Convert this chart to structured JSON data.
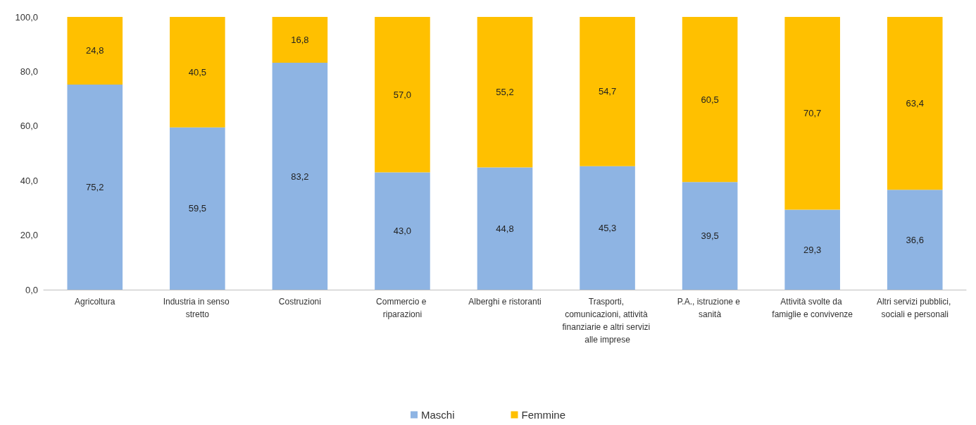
{
  "chart_data": {
    "type": "bar",
    "stacked": true,
    "categories": [
      "Agricoltura",
      "Industria in senso stretto",
      "Costruzioni",
      "Commercio e riparazioni",
      "Alberghi e ristoranti",
      "Trasporti, comunicazioni, attività finanziarie e altri servizi alle imprese",
      "P.A., istruzione e sanità",
      "Attività svolte da famiglie e convivenze",
      "Altri servizi pubblici, sociali e personali"
    ],
    "series": [
      {
        "name": "Maschi",
        "color": "#8eb4e3",
        "values": [
          75.2,
          59.5,
          83.2,
          43.0,
          44.8,
          45.3,
          39.5,
          29.3,
          36.6
        ],
        "value_labels": [
          "75,2",
          "59,5",
          "83,2",
          "43,0",
          "44,8",
          "45,3",
          "39,5",
          "29,3",
          "36,6"
        ]
      },
      {
        "name": "Femmine",
        "color": "#ffc000",
        "values": [
          24.8,
          40.5,
          16.8,
          57.0,
          55.2,
          54.7,
          60.5,
          70.7,
          63.4
        ],
        "value_labels": [
          "24,8",
          "40,5",
          "16,8",
          "57,0",
          "55,2",
          "54,7",
          "60,5",
          "70,7",
          "63,4"
        ]
      }
    ],
    "ylim": [
      0,
      100
    ],
    "yticks": [
      {
        "value": 0,
        "label": "0,0"
      },
      {
        "value": 20,
        "label": "20,0"
      },
      {
        "value": 40,
        "label": "40,0"
      },
      {
        "value": 60,
        "label": "60,0"
      },
      {
        "value": 80,
        "label": "80,0"
      },
      {
        "value": 100,
        "label": "100,0"
      }
    ],
    "grid": false,
    "legend": "bottom"
  }
}
